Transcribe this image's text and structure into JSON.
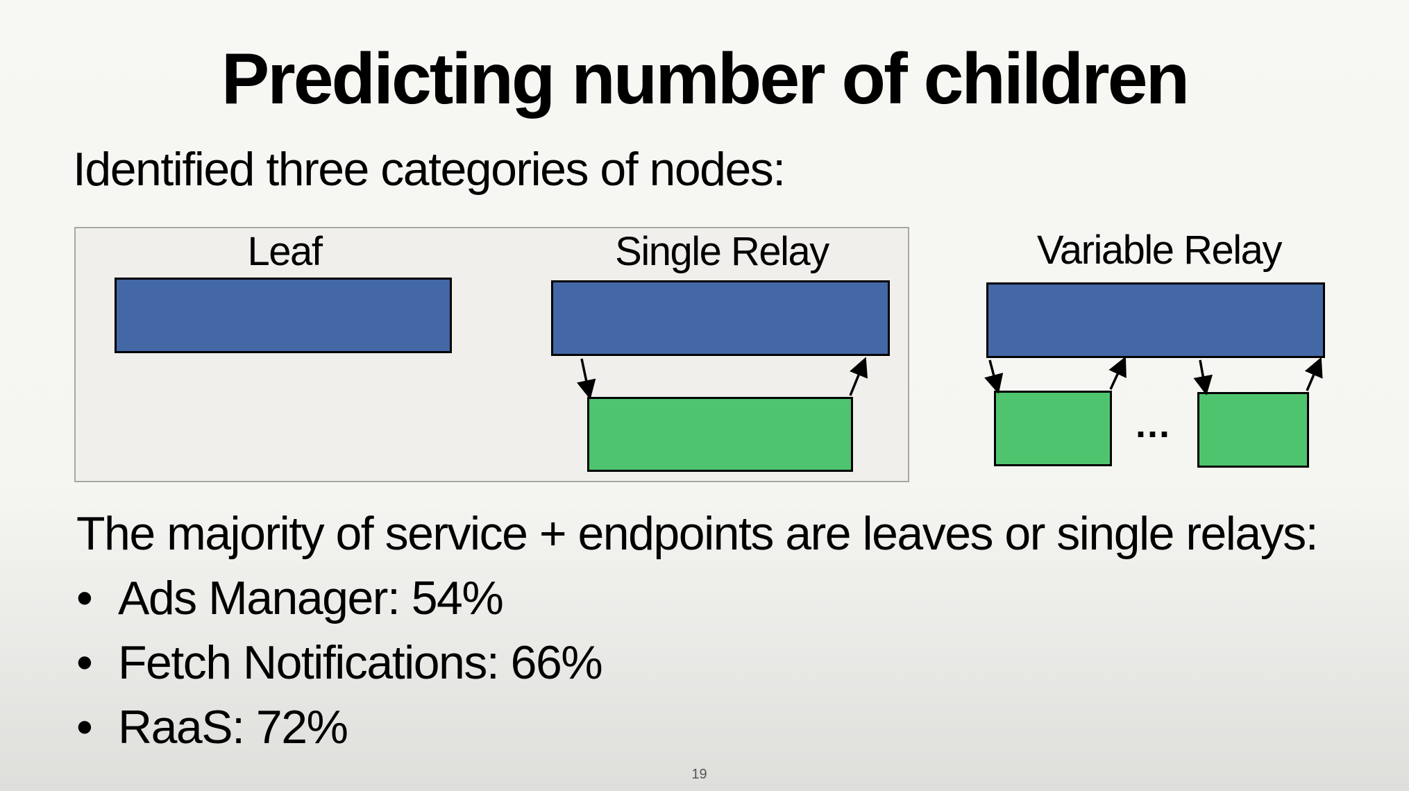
{
  "slide": {
    "title": "Predicting number of children",
    "intro": "Identified three categories of nodes:",
    "categories": [
      {
        "label": "Leaf"
      },
      {
        "label": "Single Relay"
      },
      {
        "label": "Variable Relay"
      }
    ],
    "ellipsis": "...",
    "summary": "The majority of service + endpoints are leaves or single relays:",
    "bullets": [
      {
        "text": "Ads Manager: 54%"
      },
      {
        "text": "Fetch Notifications: 66%"
      },
      {
        "text": "RaaS: 72%"
      }
    ],
    "bullet_symbol": "•",
    "page_number": "19"
  },
  "colors": {
    "parent_node": "#4467a6",
    "child_node": "#4fc46f",
    "panel_background": "#f0efeb"
  }
}
